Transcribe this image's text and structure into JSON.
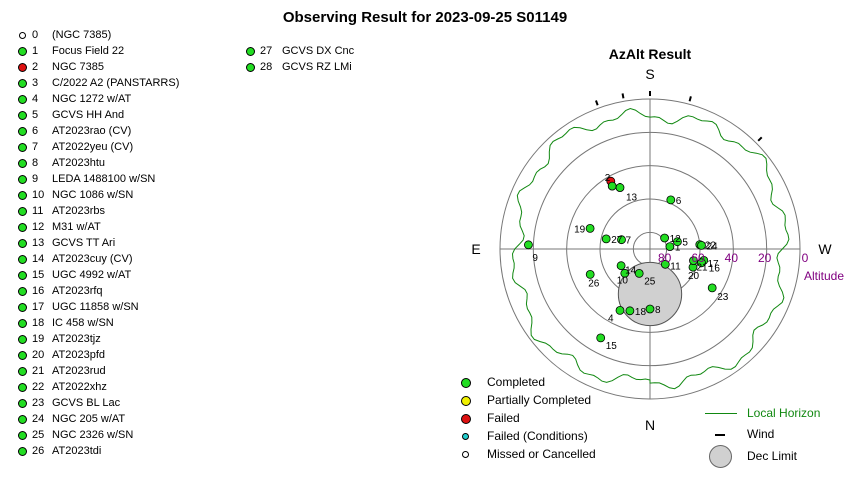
{
  "title": "Observing Result for 2023-09-25 S01149",
  "colors": {
    "completed": "#22dd22",
    "partial": "#f0f000",
    "failed": "#dd1111",
    "failed_conditions": "#22cccc",
    "missed": "#ffffff",
    "horizon": "#118811",
    "altitude": "#800080"
  },
  "targets": [
    {
      "num": "0",
      "name": "(NGC 7385)",
      "status": "missed"
    },
    {
      "num": "1",
      "name": "Focus Field 22",
      "status": "completed"
    },
    {
      "num": "2",
      "name": "NGC 7385",
      "status": "failed"
    },
    {
      "num": "3",
      "name": "C/2022 A2 (PANSTARRS)",
      "status": "completed"
    },
    {
      "num": "4",
      "name": "NGC 1272 w/AT",
      "status": "completed"
    },
    {
      "num": "5",
      "name": "GCVS HH And",
      "status": "completed"
    },
    {
      "num": "6",
      "name": "AT2023rao (CV)",
      "status": "completed"
    },
    {
      "num": "7",
      "name": "AT2022yeu (CV)",
      "status": "completed"
    },
    {
      "num": "8",
      "name": "AT2023htu",
      "status": "completed"
    },
    {
      "num": "9",
      "name": "LEDA 1488100 w/SN",
      "status": "completed"
    },
    {
      "num": "10",
      "name": "NGC 1086 w/SN",
      "status": "completed"
    },
    {
      "num": "11",
      "name": "AT2023rbs",
      "status": "completed"
    },
    {
      "num": "12",
      "name": "M31 w/AT",
      "status": "completed"
    },
    {
      "num": "13",
      "name": "GCVS TT Ari",
      "status": "completed"
    },
    {
      "num": "14",
      "name": "AT2023cuy (CV)",
      "status": "completed"
    },
    {
      "num": "15",
      "name": "UGC 4992 w/AT",
      "status": "completed"
    },
    {
      "num": "16",
      "name": "AT2023rfq",
      "status": "completed"
    },
    {
      "num": "17",
      "name": "UGC 11858 w/SN",
      "status": "completed"
    },
    {
      "num": "18",
      "name": "IC 458 w/SN",
      "status": "completed"
    },
    {
      "num": "19",
      "name": "AT2023tjz",
      "status": "completed"
    },
    {
      "num": "20",
      "name": "AT2023pfd",
      "status": "completed"
    },
    {
      "num": "21",
      "name": "AT2023rud",
      "status": "completed"
    },
    {
      "num": "22",
      "name": "AT2022xhz",
      "status": "completed"
    },
    {
      "num": "23",
      "name": "GCVS BL Lac",
      "status": "completed"
    },
    {
      "num": "24",
      "name": "NGC 205 w/AT",
      "status": "completed"
    },
    {
      "num": "25",
      "name": "NGC 2326 w/SN",
      "status": "completed"
    },
    {
      "num": "26",
      "name": "AT2023tdi",
      "status": "completed"
    },
    {
      "num": "27",
      "name": "GCVS DX Cnc",
      "status": "completed"
    },
    {
      "num": "28",
      "name": "GCVS RZ LMi",
      "status": "completed"
    }
  ],
  "legend": {
    "completed": "Completed",
    "partial": "Partially Completed",
    "failed": "Failed",
    "failed_conditions": "Failed (Conditions)",
    "missed": "Missed or Cancelled",
    "horizon": "Local Horizon",
    "wind": "Wind",
    "dec_limit": "Dec Limit"
  },
  "chart_data": {
    "type": "scatter",
    "projection": "polar-azimuth-altitude",
    "title": "AzAlt Result",
    "compass": {
      "top": "S",
      "bottom": "N",
      "left": "E",
      "right": "W"
    },
    "altitude_axis_label": "Altitude",
    "altitude_rings": [
      0,
      20,
      40,
      60,
      80
    ],
    "altitude_tick_labels": [
      "80",
      "60",
      "40",
      "20",
      "0"
    ],
    "points": [
      {
        "label": "1",
        "az": 263,
        "alt": 78,
        "status": "completed"
      },
      {
        "label": "2",
        "az": 150,
        "alt": 43,
        "status": "failed"
      },
      {
        "label": "3",
        "az": 149,
        "alt": 46,
        "status": "completed"
      },
      {
        "label": "4",
        "az": 26,
        "alt": 49,
        "status": "completed"
      },
      {
        "label": "5",
        "az": 255,
        "alt": 73,
        "status": "completed"
      },
      {
        "label": "6",
        "az": 203,
        "alt": 58,
        "status": "completed"
      },
      {
        "label": "7",
        "az": 108,
        "alt": 72,
        "status": "completed"
      },
      {
        "label": "8",
        "az": 0,
        "alt": 54,
        "status": "completed"
      },
      {
        "label": "9",
        "az": 92,
        "alt": 17,
        "status": "completed"
      },
      {
        "label": "10",
        "az": 46,
        "alt": 69,
        "status": "completed"
      },
      {
        "label": "11",
        "az": 315,
        "alt": 77,
        "status": "completed"
      },
      {
        "label": "12",
        "az": 233,
        "alt": 79,
        "status": "completed"
      },
      {
        "label": "13",
        "az": 154,
        "alt": 49,
        "status": "completed"
      },
      {
        "label": "14",
        "az": 60,
        "alt": 70,
        "status": "completed"
      },
      {
        "label": "15",
        "az": 29,
        "alt": 29,
        "status": "completed"
      },
      {
        "label": "16",
        "az": 282,
        "alt": 57,
        "status": "completed"
      },
      {
        "label": "17",
        "az": 285,
        "alt": 58,
        "status": "completed"
      },
      {
        "label": "18",
        "az": 18,
        "alt": 51,
        "status": "completed"
      },
      {
        "label": "19",
        "az": 109,
        "alt": 52,
        "status": "completed"
      },
      {
        "label": "20",
        "az": 293,
        "alt": 62,
        "status": "completed"
      },
      {
        "label": "21",
        "az": 285,
        "alt": 63,
        "status": "completed"
      },
      {
        "label": "22",
        "az": 265,
        "alt": 60,
        "status": "completed"
      },
      {
        "label": "23",
        "az": 302,
        "alt": 46,
        "status": "completed"
      },
      {
        "label": "24",
        "az": 266,
        "alt": 59,
        "status": "completed"
      },
      {
        "label": "25",
        "az": 24,
        "alt": 74,
        "status": "completed"
      },
      {
        "label": "26",
        "az": 67,
        "alt": 51,
        "status": "completed"
      },
      {
        "label": "27",
        "az": 103,
        "alt": 63,
        "status": "completed"
      }
    ],
    "local_horizon_alt_deg": 8,
    "wind_ticks_az": [
      160,
      170,
      180,
      195,
      225
    ],
    "dec_limit": {
      "az": 0,
      "alt": 63,
      "radius_alt_deg": 19
    }
  }
}
